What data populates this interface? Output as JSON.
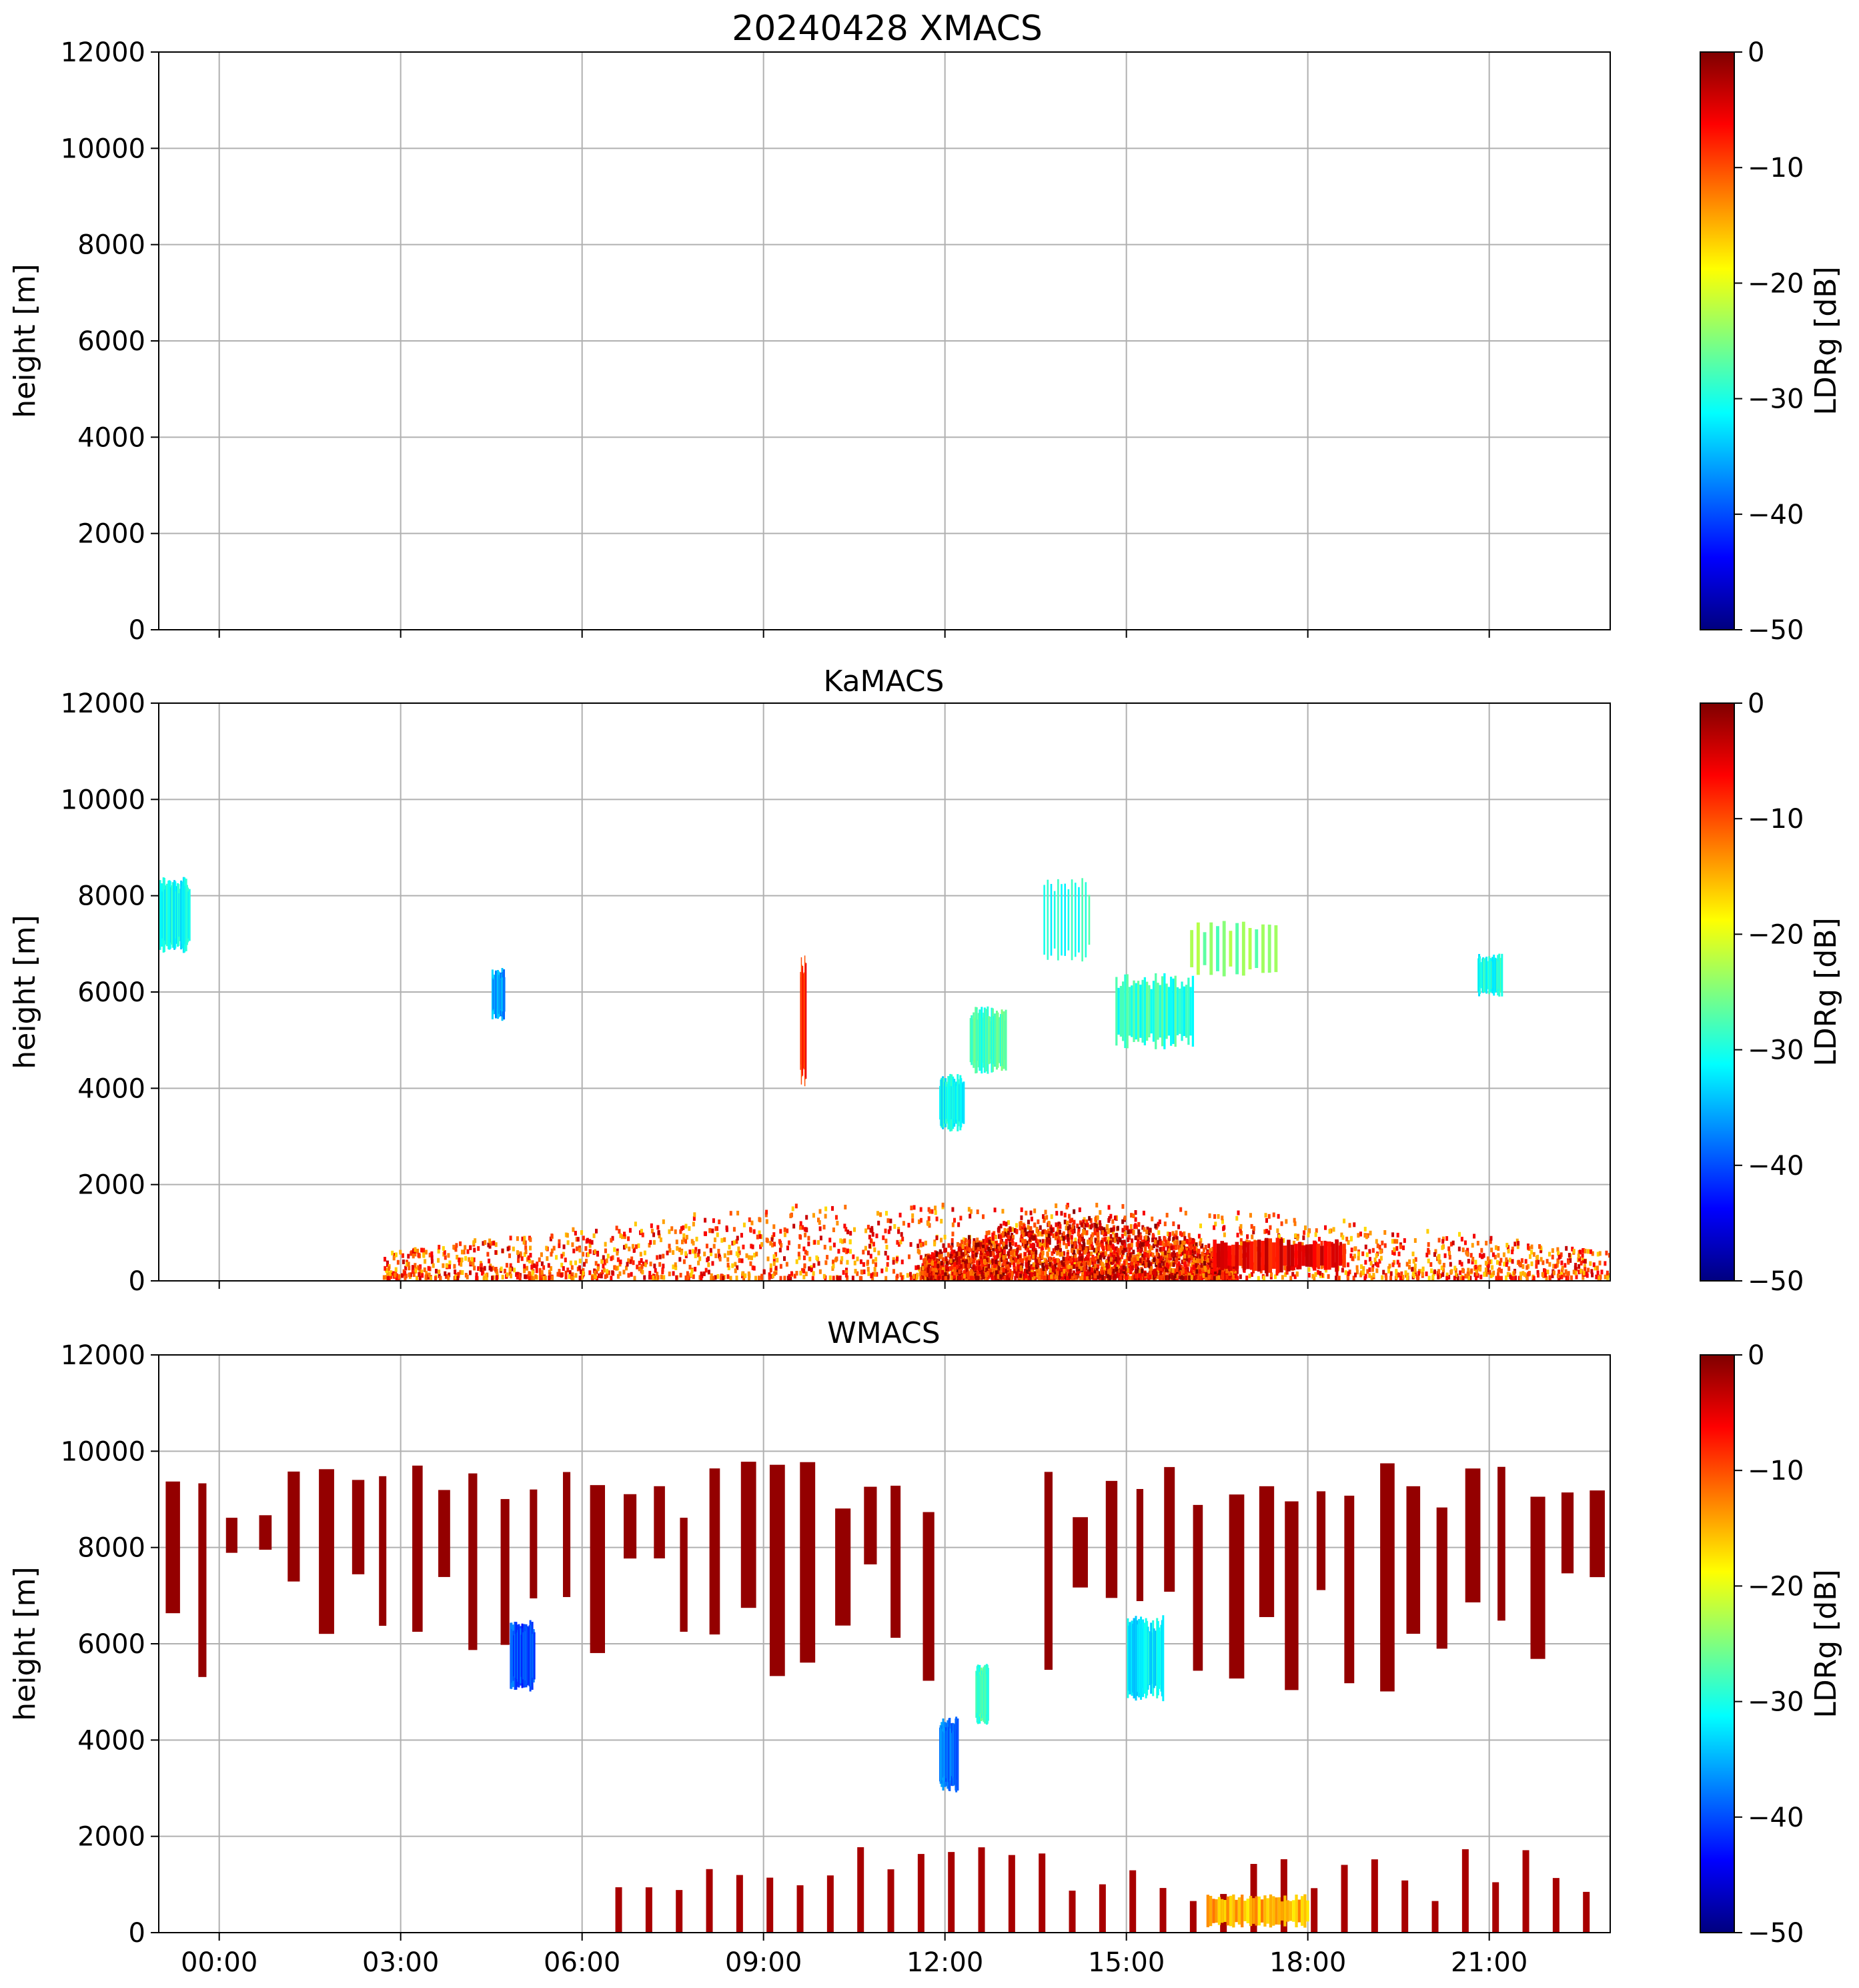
{
  "figure": {
    "suptitle": "20240428 XMACS"
  },
  "colors": {
    "grid": "#b0b0b0",
    "axes": "#000000",
    "colormap": "jet",
    "colormap_stops": [
      "#00007f",
      "#0000ff",
      "#007fff",
      "#00ffff",
      "#7fff7f",
      "#ffff00",
      "#ff7f00",
      "#ff0000",
      "#7f0000"
    ]
  },
  "chart_data": [
    {
      "type": "heatmap",
      "title": "",
      "xlabel": "",
      "ylabel": "height [m]",
      "ylim": [
        0,
        12000
      ],
      "yticks": [
        "0",
        "2000",
        "4000",
        "6000",
        "8000",
        "10000",
        "12000"
      ],
      "xlim_hours": [
        -1.0,
        23.0
      ],
      "xticks_hours": [
        0,
        3,
        6,
        9,
        12,
        15,
        18,
        21
      ],
      "xticklabels": [],
      "grid": true,
      "colorbar": {
        "label": "LDRg [dB]",
        "range": [
          -50,
          0
        ],
        "ticks": [
          "0",
          "−10",
          "−20",
          "−30",
          "−40",
          "−50"
        ]
      },
      "features": []
    },
    {
      "type": "heatmap",
      "title": "KaMACS",
      "xlabel": "",
      "ylabel": "height [m]",
      "ylim": [
        0,
        12000
      ],
      "yticks": [
        "0",
        "2000",
        "4000",
        "6000",
        "8000",
        "10000",
        "12000"
      ],
      "xlim_hours": [
        -1.0,
        23.0
      ],
      "xticks_hours": [
        0,
        3,
        6,
        9,
        12,
        15,
        18,
        21
      ],
      "xticklabels": [],
      "grid": true,
      "colorbar": {
        "label": "LDRg [dB]",
        "range": [
          -50,
          0
        ],
        "ticks": [
          "0",
          "−10",
          "−20",
          "−30",
          "−40",
          "−50"
        ]
      },
      "features": [
        {
          "kind": "boundary_layer_speckle",
          "t0": 2.7,
          "t1": 23.0,
          "h0": 100,
          "h1": 1800,
          "ldr": -10
        },
        {
          "kind": "speckle_dense",
          "t0": 11.6,
          "t1": 16.8,
          "h0": 100,
          "h1": 1500,
          "ldr": -7
        },
        {
          "kind": "cloud",
          "t0": 16.4,
          "t1": 18.6,
          "h0": 150,
          "h1": 900,
          "ldr": -6
        },
        {
          "kind": "cloud",
          "t0": 14.8,
          "t1": 16.1,
          "h0": 4800,
          "h1": 6400,
          "ldr": -29
        },
        {
          "kind": "cloud",
          "t0": 12.4,
          "t1": 13.0,
          "h0": 4300,
          "h1": 5700,
          "ldr": -28
        },
        {
          "kind": "cloud",
          "t0": 11.9,
          "t1": 12.3,
          "h0": 3100,
          "h1": 4300,
          "ldr": -31
        },
        {
          "kind": "cloud",
          "t0": -1.0,
          "t1": -0.5,
          "h0": 6800,
          "h1": 8400,
          "ldr": -31
        },
        {
          "kind": "cloud",
          "t0": 4.5,
          "t1": 4.7,
          "h0": 5400,
          "h1": 6500,
          "ldr": -36
        },
        {
          "kind": "cloud",
          "t0": 20.8,
          "t1": 21.2,
          "h0": 5900,
          "h1": 6800,
          "ldr": -30
        },
        {
          "kind": "streak",
          "t0": 16.0,
          "t1": 17.5,
          "h0": 6300,
          "h1": 7500,
          "ldr": -25
        },
        {
          "kind": "streak",
          "t0": 13.6,
          "t1": 14.4,
          "h0": 6600,
          "h1": 8400,
          "ldr": -30
        },
        {
          "kind": "streak",
          "t0": 9.6,
          "t1": 9.7,
          "h0": 4000,
          "h1": 6800,
          "ldr": -8
        }
      ]
    },
    {
      "type": "heatmap",
      "title": "WMACS",
      "xlabel": "",
      "ylabel": "height [m]",
      "ylim": [
        0,
        12000
      ],
      "yticks": [
        "0",
        "2000",
        "4000",
        "6000",
        "8000",
        "10000",
        "12000"
      ],
      "xlim_hours": [
        -1.0,
        23.0
      ],
      "xticks_hours": [
        0,
        3,
        6,
        9,
        12,
        15,
        18,
        21
      ],
      "xticklabels": [
        "00:00",
        "03:00",
        "06:00",
        "09:00",
        "12:00",
        "15:00",
        "18:00",
        "21:00"
      ],
      "grid": true,
      "colorbar": {
        "label": "LDRg [dB]",
        "range": [
          -50,
          0
        ],
        "ticks": [
          "0",
          "−10",
          "−20",
          "−30",
          "−40",
          "−50"
        ]
      },
      "features": [
        {
          "kind": "cirrus_columns",
          "t0": -0.9,
          "t1": 23.0,
          "period": 0.5,
          "ldr": -1
        },
        {
          "kind": "surface_columns",
          "t0": 6.5,
          "t1": 23.0,
          "period": 0.5,
          "h1": 1800,
          "ldr": -2
        },
        {
          "kind": "cloud",
          "t0": 11.9,
          "t1": 12.2,
          "h0": 2900,
          "h1": 4500,
          "ldr": -38
        },
        {
          "kind": "cloud",
          "t0": 12.5,
          "t1": 12.7,
          "h0": 4300,
          "h1": 5600,
          "ldr": -28
        },
        {
          "kind": "cloud",
          "t0": 15.0,
          "t1": 15.6,
          "h0": 4800,
          "h1": 6600,
          "ldr": -32
        },
        {
          "kind": "cloud",
          "t0": 4.8,
          "t1": 5.2,
          "h0": 5000,
          "h1": 6500,
          "ldr": -40
        },
        {
          "kind": "cloud",
          "t0": 16.3,
          "t1": 18.0,
          "h0": 100,
          "h1": 800,
          "ldr": -15
        }
      ]
    }
  ]
}
